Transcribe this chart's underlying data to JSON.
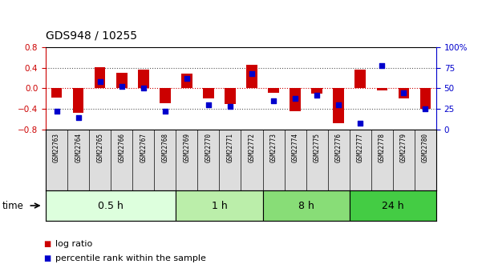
{
  "title": "GDS948 / 10255",
  "samples": [
    "GSM22763",
    "GSM22764",
    "GSM22765",
    "GSM22766",
    "GSM22767",
    "GSM22768",
    "GSM22769",
    "GSM22770",
    "GSM22771",
    "GSM22772",
    "GSM22773",
    "GSM22774",
    "GSM22775",
    "GSM22776",
    "GSM22777",
    "GSM22778",
    "GSM22779",
    "GSM22780"
  ],
  "log_ratio": [
    -0.18,
    -0.48,
    0.41,
    0.3,
    0.36,
    -0.28,
    0.28,
    -0.2,
    -0.3,
    0.46,
    -0.08,
    -0.44,
    -0.1,
    -0.68,
    0.36,
    -0.04,
    -0.2,
    -0.4
  ],
  "percentile_rank": [
    22,
    15,
    58,
    52,
    50,
    22,
    62,
    30,
    28,
    68,
    35,
    38,
    42,
    30,
    8,
    77,
    45,
    25
  ],
  "groups": [
    {
      "label": "0.5 h",
      "start": 0,
      "end": 6,
      "color": "#ddffdd"
    },
    {
      "label": "1 h",
      "start": 6,
      "end": 10,
      "color": "#bbeeaa"
    },
    {
      "label": "8 h",
      "start": 10,
      "end": 14,
      "color": "#88dd77"
    },
    {
      "label": "24 h",
      "start": 14,
      "end": 18,
      "color": "#44cc44"
    }
  ],
  "ylim_left": [
    -0.8,
    0.8
  ],
  "ylim_right": [
    0,
    100
  ],
  "bar_color": "#cc0000",
  "dot_color": "#0000cc",
  "hline0_color": "#cc0000",
  "hline_pm_color": "#555555",
  "bg_color": "#ffffff"
}
